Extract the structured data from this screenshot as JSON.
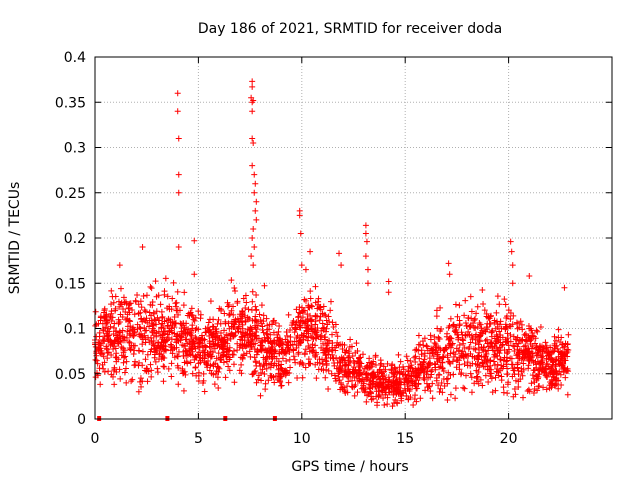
{
  "chart_data": {
    "type": "scatter",
    "title": "Day 186 of 2021, SRMTID for receiver doda",
    "xlabel": "GPS time / hours",
    "ylabel": "SRMTID / TECUs",
    "xlim": [
      0,
      25
    ],
    "ylim": [
      0,
      0.4
    ],
    "xticks": [
      0,
      5,
      10,
      15,
      20
    ],
    "yticks": [
      0,
      0.05,
      0.1,
      0.15,
      0.2,
      0.25,
      0.3,
      0.35,
      0.4
    ],
    "grid": true,
    "marker": "+",
    "color": "#ff0000",
    "zero_markers_x": [
      0.2,
      3.5,
      6.3,
      8.7
    ],
    "envelope": {
      "hours": [
        0,
        1,
        2,
        3,
        4,
        5,
        6,
        7,
        8,
        9,
        10,
        11,
        12,
        13,
        14,
        15,
        16,
        17,
        18,
        19,
        20,
        21,
        22,
        23
      ],
      "median": [
        0.085,
        0.095,
        0.09,
        0.095,
        0.09,
        0.08,
        0.08,
        0.1,
        0.085,
        0.07,
        0.1,
        0.085,
        0.06,
        0.05,
        0.04,
        0.04,
        0.06,
        0.07,
        0.085,
        0.08,
        0.08,
        0.07,
        0.06,
        0.07
      ],
      "spread": [
        0.025,
        0.035,
        0.035,
        0.035,
        0.03,
        0.025,
        0.025,
        0.03,
        0.03,
        0.025,
        0.03,
        0.03,
        0.02,
        0.018,
        0.015,
        0.015,
        0.02,
        0.03,
        0.03,
        0.03,
        0.03,
        0.025,
        0.02,
        0.02
      ]
    },
    "outliers": [
      {
        "x": 4.0,
        "y": 0.36
      },
      {
        "x": 4.0,
        "y": 0.34
      },
      {
        "x": 4.05,
        "y": 0.31
      },
      {
        "x": 4.05,
        "y": 0.27
      },
      {
        "x": 4.05,
        "y": 0.25
      },
      {
        "x": 4.05,
        "y": 0.19
      },
      {
        "x": 4.8,
        "y": 0.197
      },
      {
        "x": 4.8,
        "y": 0.16
      },
      {
        "x": 7.6,
        "y": 0.373
      },
      {
        "x": 7.6,
        "y": 0.367
      },
      {
        "x": 7.55,
        "y": 0.355
      },
      {
        "x": 7.6,
        "y": 0.35
      },
      {
        "x": 7.65,
        "y": 0.352
      },
      {
        "x": 7.6,
        "y": 0.34
      },
      {
        "x": 7.6,
        "y": 0.31
      },
      {
        "x": 7.65,
        "y": 0.305
      },
      {
        "x": 7.6,
        "y": 0.28
      },
      {
        "x": 7.7,
        "y": 0.27
      },
      {
        "x": 7.75,
        "y": 0.26
      },
      {
        "x": 7.7,
        "y": 0.25
      },
      {
        "x": 7.8,
        "y": 0.24
      },
      {
        "x": 7.75,
        "y": 0.23
      },
      {
        "x": 7.8,
        "y": 0.22
      },
      {
        "x": 7.65,
        "y": 0.21
      },
      {
        "x": 7.6,
        "y": 0.2
      },
      {
        "x": 7.7,
        "y": 0.19
      },
      {
        "x": 7.55,
        "y": 0.18
      },
      {
        "x": 7.65,
        "y": 0.17
      },
      {
        "x": 9.9,
        "y": 0.23
      },
      {
        "x": 9.9,
        "y": 0.225
      },
      {
        "x": 9.95,
        "y": 0.205
      },
      {
        "x": 10.0,
        "y": 0.17
      },
      {
        "x": 10.2,
        "y": 0.165
      },
      {
        "x": 10.4,
        "y": 0.185
      },
      {
        "x": 13.1,
        "y": 0.214
      },
      {
        "x": 13.1,
        "y": 0.205
      },
      {
        "x": 13.15,
        "y": 0.196
      },
      {
        "x": 13.1,
        "y": 0.18
      },
      {
        "x": 13.2,
        "y": 0.165
      },
      {
        "x": 13.2,
        "y": 0.15
      },
      {
        "x": 14.2,
        "y": 0.152
      },
      {
        "x": 14.2,
        "y": 0.14
      },
      {
        "x": 17.1,
        "y": 0.172
      },
      {
        "x": 17.15,
        "y": 0.16
      },
      {
        "x": 20.1,
        "y": 0.196
      },
      {
        "x": 20.15,
        "y": 0.185
      },
      {
        "x": 20.2,
        "y": 0.17
      },
      {
        "x": 20.2,
        "y": 0.15
      },
      {
        "x": 11.8,
        "y": 0.183
      },
      {
        "x": 11.9,
        "y": 0.17
      },
      {
        "x": 2.3,
        "y": 0.19
      },
      {
        "x": 1.2,
        "y": 0.17
      },
      {
        "x": 21.0,
        "y": 0.158
      },
      {
        "x": 22.7,
        "y": 0.145
      }
    ]
  }
}
